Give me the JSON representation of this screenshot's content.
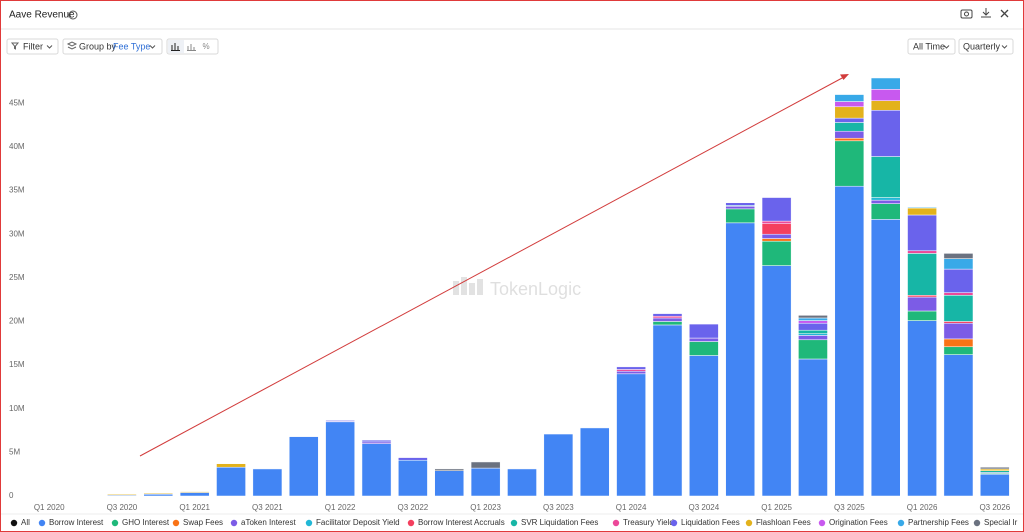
{
  "ui": {
    "title": "Aave Revenue",
    "filter": "Filter",
    "group_by": "Group by",
    "group_value": "Fee Type",
    "range": "All Time",
    "interval": "Quarterly",
    "legend_all": "All",
    "watermark": "TokenLogic"
  },
  "chart_data": {
    "type": "stacked_bar",
    "categories": [
      "Q1 2020",
      null,
      "Q3 2020",
      null,
      "Q1 2021",
      null,
      "Q3 2021",
      null,
      "Q1 2022",
      null,
      "Q3 2022",
      null,
      "Q1 2023",
      null,
      "Q3 2023",
      null,
      "Q1 2024",
      null,
      "Q3 2024",
      null,
      "Q1 2025",
      null,
      "Q3 2025",
      null,
      "Q1 2026",
      null,
      "Q3 2026"
    ],
    "ylim": [
      0,
      48.7
    ],
    "yticks": [
      0,
      {
        "value": 5,
        "label": "5M"
      },
      {
        "value": 10,
        "label": "10M"
      },
      {
        "value": 15,
        "label": "15M"
      },
      {
        "value": 20,
        "label": "20M"
      },
      {
        "value": 25,
        "label": "25M"
      },
      {
        "value": 30,
        "label": "30M"
      },
      {
        "value": 35,
        "label": "35M"
      },
      {
        "value": 40,
        "label": "40M"
      },
      {
        "value": 45,
        "label": "45M"
      }
    ],
    "grid": false,
    "series": [
      {
        "name": "Borrow Interest",
        "color": "#4285f4",
        "values": [
          0,
          0.05,
          0.1,
          0.2,
          0.4,
          3.3,
          3.1,
          6.8,
          8.5,
          6.0,
          4.1,
          2.9,
          3.2,
          3.1,
          7.1,
          7.8,
          14.0,
          19.6,
          16.1,
          31.3,
          26.4,
          15.7,
          35.5,
          31.7,
          20.1,
          16.2,
          2.5
        ]
      },
      {
        "name": "GHO Interest",
        "color": "#1fb87a",
        "values": [
          0,
          0,
          0,
          0,
          0,
          0,
          0,
          0,
          0,
          0,
          0,
          0,
          0,
          0,
          0,
          0,
          0,
          0.4,
          1.6,
          1.6,
          2.8,
          2.2,
          5.2,
          1.8,
          1.1,
          0.9,
          0.1
        ]
      },
      {
        "name": "Swap Fees",
        "color": "#f97316",
        "values": [
          0,
          0,
          0,
          0,
          0,
          0,
          0,
          0,
          0,
          0,
          0,
          0,
          0,
          0,
          0,
          0,
          0,
          0,
          0,
          0,
          0.3,
          0,
          0.3,
          0,
          0,
          0.9,
          0
        ]
      },
      {
        "name": "aToken Interest",
        "color": "#7c5ce6",
        "values": [
          0,
          0,
          0,
          0,
          0,
          0,
          0,
          0,
          0.1,
          0.2,
          0,
          0,
          0,
          0,
          0,
          0,
          0.3,
          0.4,
          0.4,
          0.3,
          0.5,
          0.5,
          0.8,
          0.4,
          1.6,
          1.8,
          0.1
        ]
      },
      {
        "name": "Facilitator Deposit Yield",
        "color": "#22b8d6",
        "values": [
          0,
          0,
          0,
          0,
          0,
          0,
          0,
          0,
          0,
          0,
          0,
          0,
          0,
          0,
          0,
          0,
          0,
          0,
          0,
          0.1,
          0,
          0.2,
          0,
          0.3,
          0,
          0,
          0
        ]
      },
      {
        "name": "Borrow Interest Accruals",
        "color": "#f43f5e",
        "values": [
          0,
          0,
          0,
          0,
          0,
          0,
          0,
          0,
          0,
          0,
          0,
          0,
          0,
          0,
          0,
          0,
          0,
          0,
          0,
          0,
          1.2,
          0,
          0,
          0,
          0.2,
          0.2,
          0
        ]
      },
      {
        "name": "SVR Liquidation Fees",
        "color": "#17b6a6",
        "values": [
          0,
          0,
          0,
          0,
          0,
          0,
          0,
          0,
          0,
          0,
          0,
          0,
          0,
          0,
          0,
          0,
          0,
          0,
          0,
          0,
          0,
          0.4,
          1.0,
          4.7,
          4.8,
          3.0,
          0.2
        ]
      },
      {
        "name": "Treasury Yield",
        "color": "#ec4899",
        "values": [
          0,
          0,
          0,
          0,
          0,
          0,
          0,
          0,
          0,
          0,
          0,
          0,
          0,
          0,
          0,
          0,
          0.2,
          0.2,
          0,
          0,
          0.3,
          0,
          0,
          0,
          0.3,
          0.3,
          0
        ]
      },
      {
        "name": "Liquidation Fees",
        "color": "#6a63ec",
        "values": [
          0,
          0,
          0,
          0,
          0,
          0,
          0,
          0,
          0.1,
          0.2,
          0.3,
          0,
          0,
          0,
          0,
          0,
          0.3,
          0.3,
          1.6,
          0.3,
          2.7,
          0.8,
          0.5,
          5.3,
          4.1,
          2.7,
          0
        ]
      },
      {
        "name": "Flashloan Fees",
        "color": "#e3b21c",
        "values": [
          0,
          0,
          0.1,
          0.1,
          0.1,
          0.4,
          0,
          0,
          0,
          0,
          0,
          0,
          0,
          0,
          0,
          0,
          0,
          0,
          0,
          0,
          0,
          0,
          1.3,
          1.1,
          0.8,
          0,
          0.2
        ]
      },
      {
        "name": "Origination Fees",
        "color": "#c859ef",
        "values": [
          0,
          0,
          0,
          0,
          0,
          0,
          0,
          0,
          0,
          0,
          0,
          0,
          0,
          0,
          0,
          0,
          0,
          0,
          0,
          0,
          0,
          0.3,
          0.6,
          1.3,
          0,
          0,
          0
        ]
      },
      {
        "name": "Partnership Fees",
        "color": "#38a9e8",
        "values": [
          0,
          0,
          0,
          0,
          0,
          0,
          0,
          0,
          0,
          0,
          0,
          0,
          0,
          0,
          0,
          0,
          0,
          0,
          0,
          0,
          0,
          0.3,
          0.8,
          1.3,
          0.1,
          1.2,
          0
        ]
      },
      {
        "name": "Special Ir",
        "color": "#6b7280",
        "values": [
          0,
          0,
          0,
          0,
          0,
          0,
          0,
          0,
          0,
          0,
          0,
          0.2,
          0.7,
          0,
          0,
          0,
          0,
          0,
          0,
          0,
          0,
          0.3,
          0,
          0,
          0,
          0.6,
          0.2
        ]
      }
    ]
  }
}
